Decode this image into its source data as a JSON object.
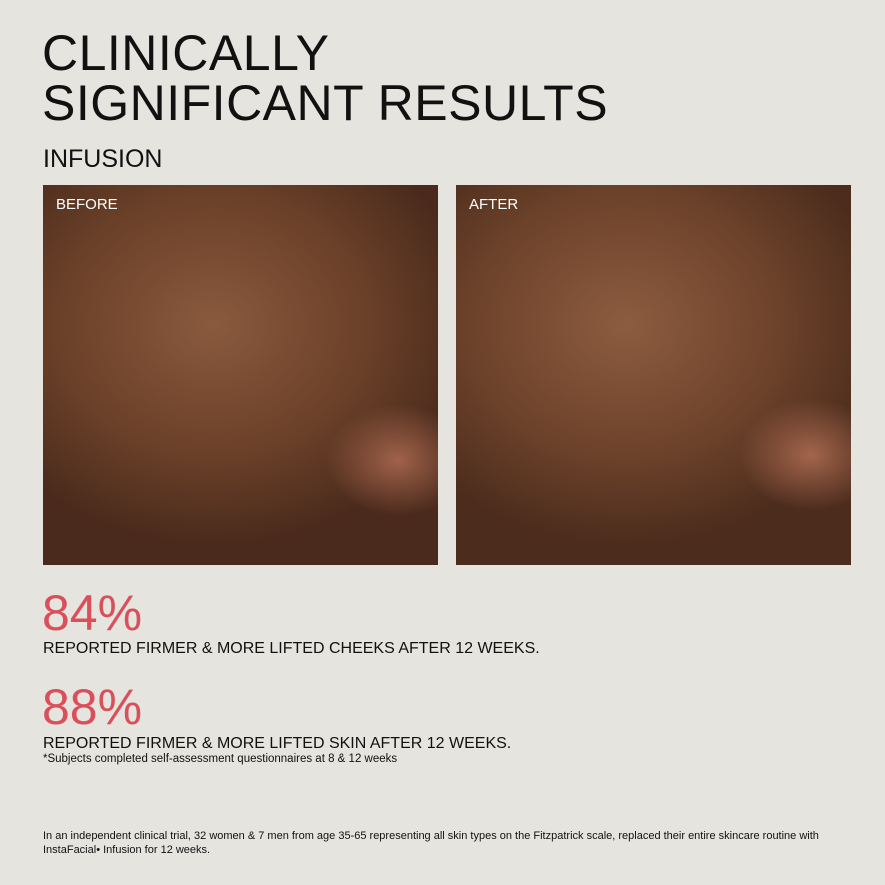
{
  "header": {
    "title_line1": "CLINICALLY",
    "title_line2": "SIGNIFICANT RESULTS",
    "subtitle": "INFUSION"
  },
  "photos": {
    "before_label": "BEFORE",
    "after_label": "AFTER"
  },
  "stats": [
    {
      "value": "84%",
      "text": "REPORTED FIRMER & MORE LIFTED CHEEKS AFTER 12 WEEKS."
    },
    {
      "value": "88%",
      "text": "REPORTED FIRMER & MORE LIFTED SKIN AFTER 12 WEEKS."
    }
  ],
  "footnote": "*Subjects completed self-assessment questionnaires at 8 & 12 weeks",
  "disclaimer": "In an independent clinical trial, 32 women & 7 men from age 35-65 representing all skin types on the Fitzpatrick scale, replaced their entire skincare routine with InstaFacial• Infusion for 12 weeks.",
  "colors": {
    "accent": "#d9505a",
    "background": "#e5e4df"
  }
}
